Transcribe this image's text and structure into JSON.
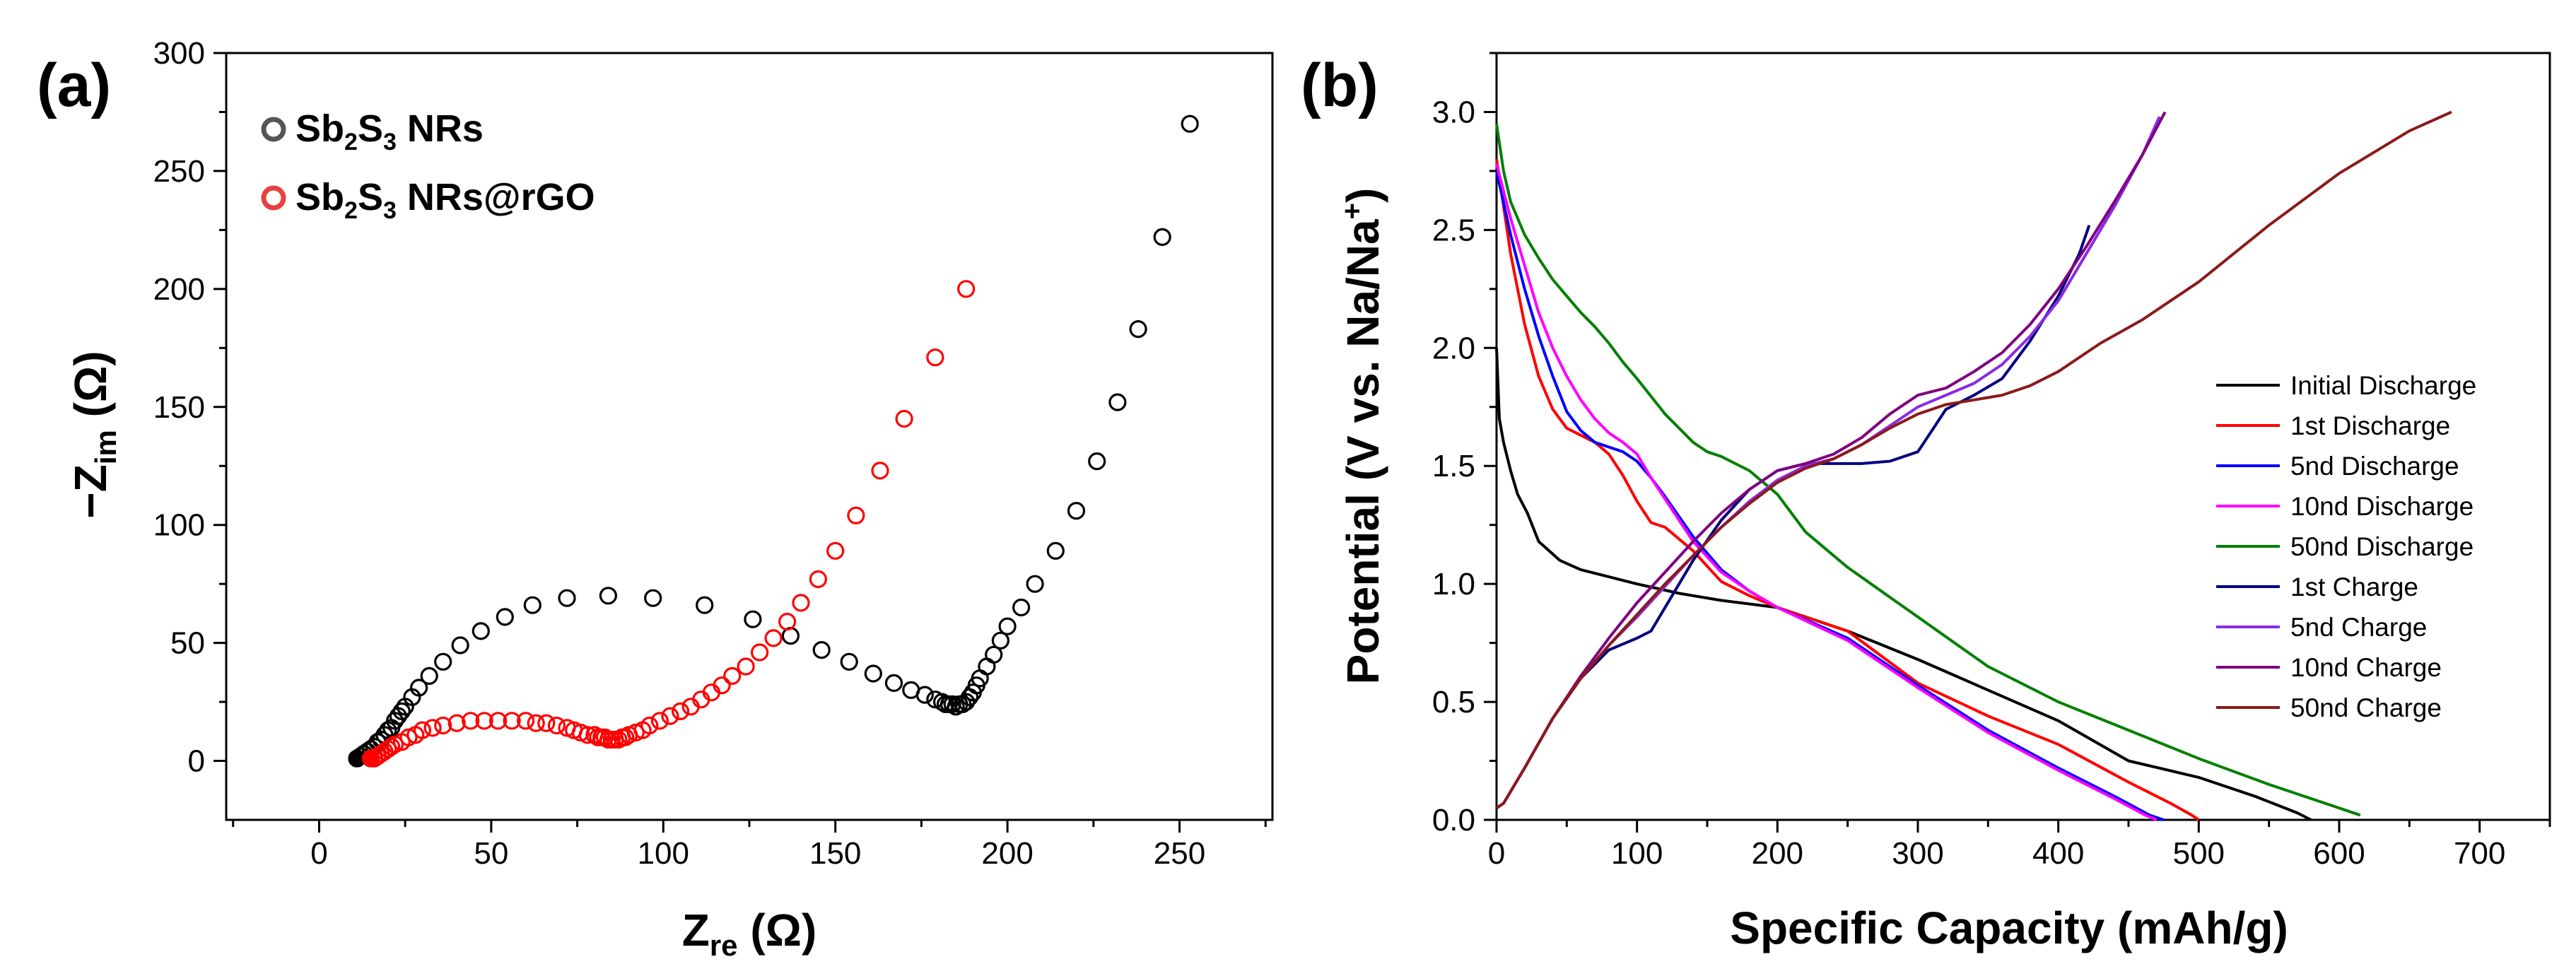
{
  "figure": {
    "panel_a_label": "(a)",
    "panel_b_label": "(b)"
  },
  "chart_data": [
    {
      "id": "a",
      "type": "scatter",
      "title": "",
      "xlabel_main": "Z",
      "xlabel_sub": "re",
      "xlabel_unit": " (Ω)",
      "ylabel_prefix": "−Z",
      "ylabel_sub": "im",
      "ylabel_unit": " (Ω)",
      "xlim": [
        -27,
        277
      ],
      "ylim": [
        -25,
        300
      ],
      "xticks": [
        0,
        50,
        100,
        150,
        200,
        250
      ],
      "yticks": [
        0,
        50,
        100,
        150,
        200,
        250,
        300
      ],
      "xtick_labels": [
        "0",
        "50",
        "100",
        "150",
        "200",
        "250"
      ],
      "ytick_labels": [
        "0",
        "50",
        "100",
        "150",
        "200",
        "250",
        "300"
      ],
      "legend_position": "top-left",
      "series": [
        {
          "name": "Sb2S3 NRs",
          "name_parts": {
            "a": "Sb",
            "b": "2",
            "c": "S",
            "d": "3",
            "e": " NRs"
          },
          "color": "#000000",
          "legend_color": "#555555",
          "x": [
            11,
            12,
            13,
            14,
            15,
            16,
            17,
            18,
            19,
            20,
            21,
            22,
            23,
            24,
            25,
            27,
            29,
            32,
            36,
            41,
            47,
            54,
            62,
            72,
            84,
            97,
            112,
            126,
            137,
            146,
            154,
            161,
            167,
            172,
            176,
            179,
            181,
            182,
            183,
            184,
            185,
            186,
            187,
            188,
            189,
            190,
            191,
            192,
            194,
            196,
            198,
            200,
            204,
            208,
            214,
            220,
            226,
            232,
            238,
            245,
            253
          ],
          "y": [
            1,
            2,
            3,
            4,
            5,
            6,
            8,
            9,
            11,
            13,
            14,
            17,
            19,
            21,
            23,
            27,
            31,
            36,
            42,
            49,
            55,
            61,
            66,
            69,
            70,
            69,
            66,
            60,
            53,
            47,
            42,
            37,
            33,
            30,
            28,
            26,
            25,
            24,
            24,
            24,
            23,
            24,
            24,
            25,
            27,
            29,
            32,
            35,
            40,
            45,
            51,
            57,
            65,
            75,
            89,
            106,
            127,
            152,
            183,
            222,
            270
          ]
        },
        {
          "name": "Sb2S3 NRs@rGO",
          "name_parts": {
            "a": "Sb",
            "b": "2",
            "c": "S",
            "d": "3",
            "e": " NRs@rGO"
          },
          "color": "#ff0000",
          "legend_color": "#e84040",
          "x": [
            15,
            16,
            17,
            18,
            19,
            20,
            21,
            22,
            24,
            26,
            28,
            30,
            33,
            36,
            40,
            44,
            48,
            52,
            56,
            60,
            63,
            66,
            69,
            72,
            74,
            76,
            78,
            80,
            81,
            82,
            83,
            84,
            85,
            86,
            87,
            88,
            89,
            90,
            92,
            94,
            96,
            99,
            102,
            105,
            108,
            111,
            114,
            117,
            120,
            124,
            128,
            132,
            136,
            140,
            145,
            150,
            156,
            163,
            170,
            179,
            188
          ],
          "y": [
            1,
            1,
            2,
            3,
            4,
            5,
            6,
            7,
            8,
            10,
            11,
            13,
            14,
            15,
            16,
            17,
            17,
            17,
            17,
            17,
            16,
            16,
            15,
            14,
            13,
            12,
            11,
            11,
            10,
            10,
            10,
            9,
            9,
            9,
            9,
            10,
            10,
            11,
            12,
            13,
            15,
            17,
            19,
            21,
            23,
            26,
            29,
            32,
            36,
            40,
            46,
            52,
            59,
            67,
            77,
            89,
            104,
            123,
            145,
            171,
            200
          ]
        }
      ]
    },
    {
      "id": "b",
      "type": "line",
      "title": "",
      "xlabel": "Specific Capacity (mAh/g)",
      "ylabel_text": "Potential (V vs. Na/Na",
      "ylabel_sup": "+",
      "ylabel_close": ")",
      "xlim": [
        0,
        750
      ],
      "ylim": [
        0,
        3.25
      ],
      "xticks": [
        0,
        100,
        200,
        300,
        400,
        500,
        600,
        700
      ],
      "yticks": [
        0,
        0.5,
        1.0,
        1.5,
        2.0,
        2.5,
        3.0
      ],
      "xtick_labels": [
        "0",
        "100",
        "200",
        "300",
        "400",
        "500",
        "600",
        "700"
      ],
      "ytick_labels": [
        "0.0",
        "0.5",
        "1.0",
        "1.5",
        "2.0",
        "2.5",
        "3.0"
      ],
      "legend_position": "right",
      "series": [
        {
          "name": "Initial Discharge",
          "color": "#000000",
          "x": [
            0,
            2,
            5,
            10,
            15,
            22,
            30,
            45,
            60,
            80,
            100,
            130,
            160,
            200,
            250,
            300,
            350,
            400,
            450,
            500,
            540,
            570,
            580
          ],
          "y": [
            2.0,
            1.7,
            1.6,
            1.48,
            1.38,
            1.3,
            1.18,
            1.1,
            1.06,
            1.03,
            1.0,
            0.96,
            0.93,
            0.9,
            0.8,
            0.68,
            0.55,
            0.42,
            0.25,
            0.18,
            0.1,
            0.03,
            0.0
          ]
        },
        {
          "name": "1st Discharge",
          "color": "#ff0000",
          "x": [
            0,
            10,
            20,
            30,
            40,
            50,
            60,
            70,
            80,
            90,
            100,
            110,
            120,
            140,
            160,
            180,
            200,
            250,
            300,
            350,
            400,
            450,
            480,
            495,
            500
          ],
          "y": [
            2.8,
            2.4,
            2.1,
            1.88,
            1.74,
            1.66,
            1.63,
            1.6,
            1.55,
            1.46,
            1.35,
            1.26,
            1.24,
            1.14,
            1.01,
            0.95,
            0.9,
            0.8,
            0.58,
            0.44,
            0.32,
            0.16,
            0.07,
            0.02,
            0.0
          ]
        },
        {
          "name": "5nd Discharge",
          "color": "#0000ff",
          "x": [
            0,
            10,
            20,
            30,
            40,
            50,
            60,
            70,
            80,
            90,
            100,
            110,
            120,
            140,
            160,
            180,
            200,
            250,
            300,
            350,
            400,
            440,
            465,
            475
          ],
          "y": [
            2.75,
            2.48,
            2.25,
            2.05,
            1.88,
            1.73,
            1.65,
            1.6,
            1.58,
            1.56,
            1.52,
            1.45,
            1.37,
            1.2,
            1.06,
            0.97,
            0.9,
            0.77,
            0.57,
            0.38,
            0.22,
            0.1,
            0.02,
            0.0
          ]
        },
        {
          "name": "10nd Discharge",
          "color": "#ff00ff",
          "x": [
            0,
            10,
            20,
            30,
            40,
            50,
            60,
            70,
            80,
            90,
            100,
            110,
            120,
            140,
            160,
            180,
            200,
            250,
            300,
            350,
            400,
            440,
            462,
            470
          ],
          "y": [
            2.78,
            2.55,
            2.35,
            2.15,
            2.0,
            1.88,
            1.78,
            1.7,
            1.64,
            1.6,
            1.55,
            1.45,
            1.36,
            1.18,
            1.05,
            0.97,
            0.9,
            0.76,
            0.56,
            0.37,
            0.21,
            0.09,
            0.02,
            0.0
          ]
        },
        {
          "name": "50nd Discharge",
          "color": "#008000",
          "x": [
            0,
            5,
            10,
            20,
            30,
            40,
            50,
            60,
            70,
            80,
            90,
            100,
            120,
            140,
            150,
            160,
            180,
            200,
            220,
            250,
            300,
            350,
            400,
            450,
            500,
            550,
            600,
            615
          ],
          "y": [
            2.95,
            2.75,
            2.62,
            2.48,
            2.38,
            2.29,
            2.22,
            2.15,
            2.09,
            2.02,
            1.94,
            1.87,
            1.72,
            1.6,
            1.56,
            1.54,
            1.48,
            1.38,
            1.22,
            1.07,
            0.86,
            0.65,
            0.5,
            0.38,
            0.26,
            0.15,
            0.05,
            0.02
          ]
        },
        {
          "name": "1st Charge",
          "color": "#000080",
          "x": [
            0,
            5,
            10,
            20,
            40,
            60,
            80,
            100,
            110,
            120,
            140,
            160,
            180,
            200,
            220,
            240,
            260,
            280,
            300,
            310,
            320,
            340,
            360,
            380,
            400,
            415,
            422
          ],
          "y": [
            0.05,
            0.07,
            0.12,
            0.22,
            0.43,
            0.6,
            0.72,
            0.77,
            0.8,
            0.9,
            1.1,
            1.27,
            1.4,
            1.48,
            1.51,
            1.51,
            1.51,
            1.52,
            1.56,
            1.65,
            1.74,
            1.8,
            1.87,
            2.03,
            2.22,
            2.4,
            2.52
          ]
        },
        {
          "name": "5nd Charge",
          "color": "#8a2be2",
          "x": [
            0,
            5,
            10,
            20,
            40,
            60,
            80,
            100,
            120,
            140,
            160,
            180,
            200,
            220,
            240,
            260,
            280,
            300,
            320,
            340,
            360,
            380,
            400,
            420,
            440,
            460,
            472
          ],
          "y": [
            0.05,
            0.07,
            0.12,
            0.22,
            0.43,
            0.6,
            0.74,
            0.86,
            0.99,
            1.12,
            1.24,
            1.35,
            1.44,
            1.5,
            1.53,
            1.59,
            1.67,
            1.75,
            1.8,
            1.85,
            1.93,
            2.05,
            2.2,
            2.4,
            2.6,
            2.82,
            2.98
          ]
        },
        {
          "name": "10nd Charge",
          "color": "#800080",
          "x": [
            0,
            5,
            10,
            20,
            40,
            60,
            80,
            100,
            120,
            140,
            160,
            180,
            200,
            220,
            240,
            260,
            280,
            300,
            320,
            340,
            360,
            380,
            400,
            420,
            440,
            460,
            476
          ],
          "y": [
            0.05,
            0.07,
            0.12,
            0.22,
            0.43,
            0.61,
            0.77,
            0.92,
            1.05,
            1.18,
            1.3,
            1.4,
            1.48,
            1.51,
            1.55,
            1.62,
            1.72,
            1.8,
            1.83,
            1.9,
            1.98,
            2.1,
            2.25,
            2.43,
            2.62,
            2.82,
            3.0
          ]
        },
        {
          "name": "50nd Charge",
          "color": "#8b1a1a",
          "x": [
            0,
            5,
            10,
            20,
            40,
            60,
            80,
            100,
            120,
            140,
            160,
            180,
            200,
            220,
            240,
            260,
            280,
            300,
            320,
            340,
            360,
            380,
            400,
            430,
            460,
            500,
            550,
            600,
            650,
            680
          ],
          "y": [
            0.05,
            0.07,
            0.12,
            0.22,
            0.43,
            0.6,
            0.74,
            0.87,
            1.0,
            1.12,
            1.24,
            1.34,
            1.43,
            1.49,
            1.53,
            1.59,
            1.66,
            1.72,
            1.76,
            1.78,
            1.8,
            1.84,
            1.9,
            2.02,
            2.12,
            2.28,
            2.52,
            2.74,
            2.92,
            3.0
          ]
        }
      ]
    }
  ]
}
